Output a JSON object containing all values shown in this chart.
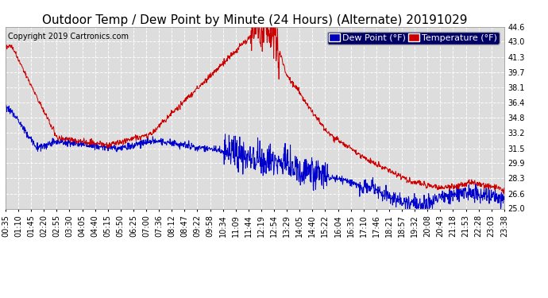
{
  "title": "Outdoor Temp / Dew Point by Minute (24 Hours) (Alternate) 20191029",
  "copyright": "Copyright 2019 Cartronics.com",
  "legend_dew": "Dew Point (°F)",
  "legend_temp": "Temperature (°F)",
  "dew_color": "#0000cc",
  "temp_color": "#cc0000",
  "legend_dew_bg": "#0000bb",
  "legend_temp_bg": "#cc0000",
  "legend_frame_bg": "#000066",
  "ymin": 25.0,
  "ymax": 44.6,
  "yticks": [
    25.0,
    26.6,
    28.3,
    29.9,
    31.5,
    33.2,
    34.8,
    36.4,
    38.1,
    39.7,
    41.3,
    43.0,
    44.6
  ],
  "background_color": "#ffffff",
  "plot_bg": "#dddddd",
  "grid_color": "#ffffff",
  "title_fontsize": 11,
  "copyright_fontsize": 7,
  "tick_fontsize": 7,
  "legend_fontsize": 8
}
